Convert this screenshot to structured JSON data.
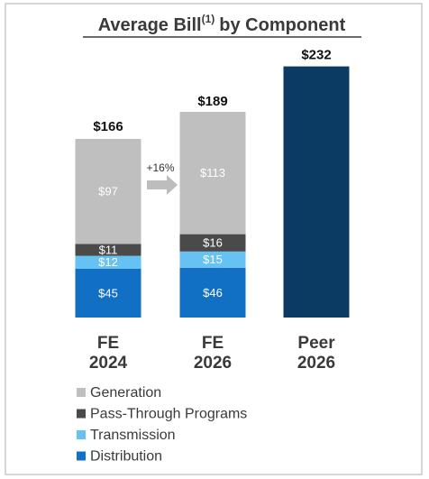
{
  "chart_data": {
    "type": "stacked_bar",
    "title": "Average Bill",
    "title_note": "(1)",
    "title_suffix": "by Component",
    "categories": [
      "FE 2024",
      "FE 2026",
      "Peer 2026"
    ],
    "series": [
      {
        "name": "Generation",
        "color": "#bfbfbf",
        "values": [
          97,
          113,
          null
        ],
        "value_labels": [
          "$97",
          "$113",
          null
        ]
      },
      {
        "name": "Pass-Through Programs",
        "color": "#4a4a4a",
        "values": [
          11,
          16,
          null
        ],
        "value_labels": [
          "$11",
          "$16",
          null
        ]
      },
      {
        "name": "Transmission",
        "color": "#66c2f2",
        "values": [
          12,
          15,
          null
        ],
        "value_labels": [
          "$12",
          "$15",
          null
        ]
      },
      {
        "name": "Distribution",
        "color": "#1270c4",
        "values": [
          45,
          46,
          null
        ],
        "value_labels": [
          "$45",
          "$46",
          null
        ]
      }
    ],
    "totals": {
      "values": [
        166,
        189,
        232
      ],
      "value_labels": [
        "$166",
        "$189",
        "$232"
      ],
      "color": "#0b3a63"
    },
    "annotation": "+16%"
  }
}
